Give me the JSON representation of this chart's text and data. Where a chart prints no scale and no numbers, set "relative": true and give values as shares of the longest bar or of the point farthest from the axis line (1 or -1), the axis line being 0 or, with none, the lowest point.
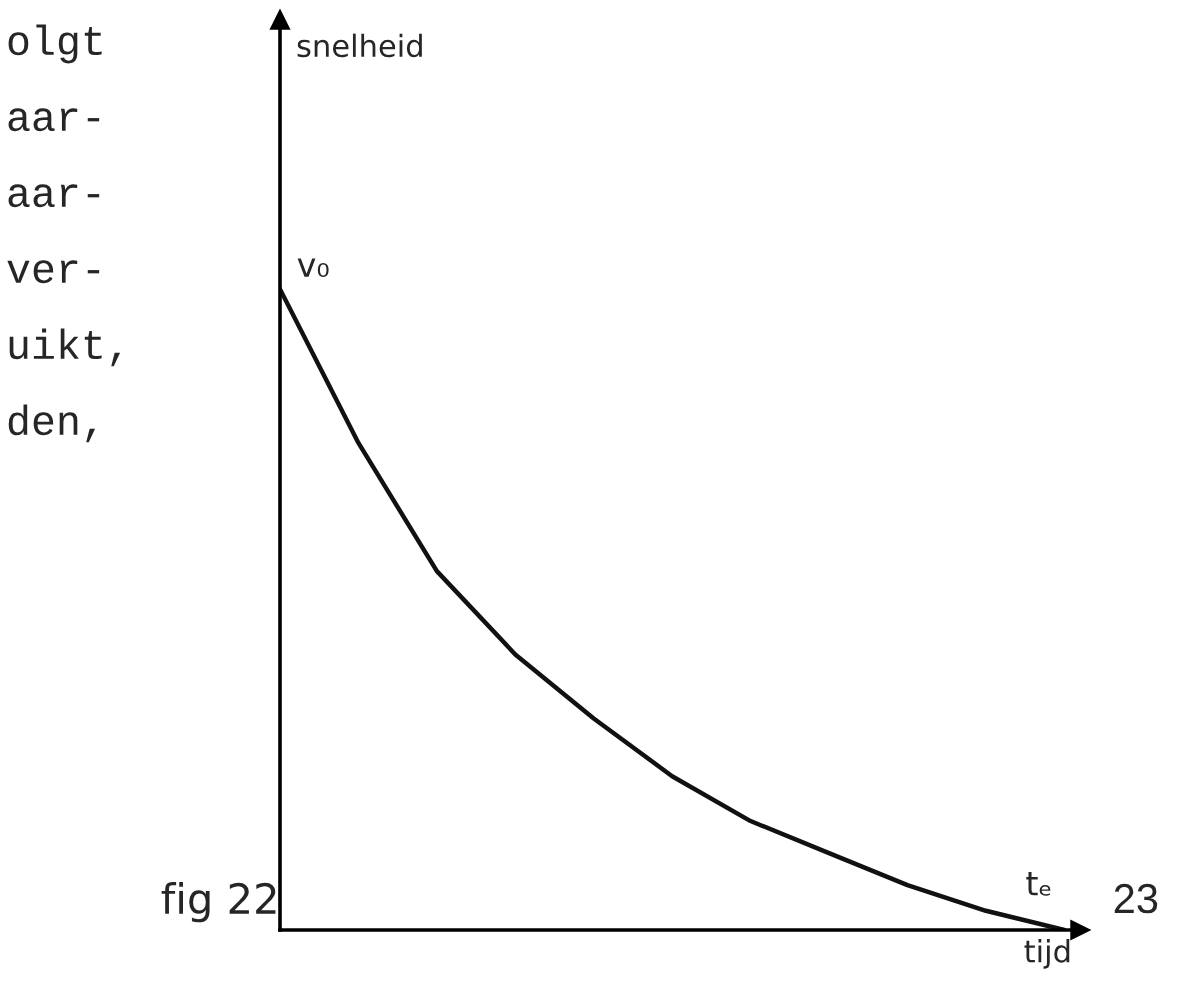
{
  "chart_data": {
    "type": "line",
    "relative": true,
    "xlabel": "tijd",
    "color": "#111111",
    "marker": "none",
    "line_style": "solid",
    "grid": false,
    "categories": [
      null,
      null,
      null,
      null,
      null,
      null,
      null,
      null,
      null,
      null,
      null
    ],
    "values": [
      1.0,
      0.76,
      0.56,
      0.43,
      0.33,
      0.24,
      0.17,
      0.12,
      0.07,
      0.03,
      0.0
    ],
    "annotations": [
      "snelheid",
      "v₀",
      "tₑ",
      "fig 22",
      "23",
      "olgt",
      "aar-",
      "aar-",
      "ver-",
      "uikt,",
      "den,"
    ]
  }
}
